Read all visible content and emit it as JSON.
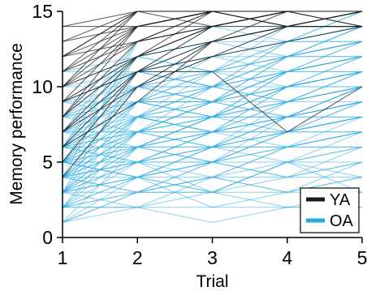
{
  "chart_data": {
    "type": "line",
    "title": "",
    "xlabel": "Trial",
    "ylabel": "Memory performance",
    "x": [
      1,
      2,
      3,
      4,
      5
    ],
    "xlim": [
      1,
      5
    ],
    "ylim": [
      0,
      15
    ],
    "xticks": [
      "1",
      "2",
      "3",
      "4",
      "5"
    ],
    "yticks": [
      "0",
      "5",
      "10",
      "15"
    ],
    "grid": false,
    "legend_position": "bottom-right",
    "series": [
      {
        "name": "YA",
        "color": "#1a1a1a",
        "lines": [
          [
            12,
            15,
            15,
            15,
            15
          ],
          [
            13,
            15,
            15,
            15,
            15
          ],
          [
            14,
            15,
            15,
            15,
            15
          ],
          [
            11,
            14,
            15,
            15,
            15
          ],
          [
            10,
            14,
            15,
            15,
            15
          ],
          [
            9,
            14,
            15,
            15,
            15
          ],
          [
            12,
            14,
            15,
            14,
            15
          ],
          [
            11,
            13,
            15,
            15,
            15
          ],
          [
            10,
            13,
            14,
            15,
            15
          ],
          [
            8,
            12,
            14,
            15,
            15
          ],
          [
            7,
            12,
            14,
            14,
            15
          ],
          [
            9,
            12,
            13,
            14,
            15
          ],
          [
            6,
            11,
            13,
            14,
            14
          ],
          [
            5,
            11,
            12,
            14,
            14
          ],
          [
            7,
            10,
            12,
            13,
            14
          ],
          [
            8,
            13,
            15,
            14,
            14
          ],
          [
            12,
            15,
            14,
            15,
            15
          ],
          [
            13,
            14,
            15,
            15,
            15
          ],
          [
            10,
            12,
            15,
            15,
            15
          ],
          [
            6,
            9,
            13,
            15,
            15
          ],
          [
            11,
            15,
            15,
            14,
            15
          ],
          [
            9,
            11,
            14,
            15,
            14
          ],
          [
            4,
            10,
            13,
            14,
            15
          ],
          [
            8,
            14,
            14,
            15,
            15
          ],
          [
            14,
            14,
            15,
            15,
            15
          ],
          [
            7,
            11,
            11,
            7,
            10
          ],
          [
            10,
            15,
            15,
            15,
            14
          ],
          [
            12,
            13,
            14,
            15,
            15
          ]
        ]
      },
      {
        "name": "OA",
        "color": "#29abe2",
        "lines": [
          [
            1,
            3,
            3,
            5,
            6
          ],
          [
            2,
            3,
            4,
            5,
            6
          ],
          [
            3,
            4,
            5,
            6,
            7
          ],
          [
            4,
            5,
            6,
            7,
            8
          ],
          [
            5,
            6,
            7,
            8,
            9
          ],
          [
            6,
            7,
            8,
            9,
            10
          ],
          [
            7,
            8,
            9,
            10,
            11
          ],
          [
            8,
            9,
            10,
            11,
            12
          ],
          [
            4,
            6,
            7,
            8,
            8
          ],
          [
            5,
            7,
            8,
            9,
            9
          ],
          [
            3,
            5,
            6,
            7,
            7
          ],
          [
            6,
            8,
            9,
            10,
            10
          ],
          [
            7,
            9,
            10,
            11,
            11
          ],
          [
            8,
            10,
            11,
            12,
            12
          ],
          [
            9,
            11,
            12,
            13,
            13
          ],
          [
            4,
            7,
            9,
            10,
            11
          ],
          [
            5,
            8,
            10,
            11,
            12
          ],
          [
            6,
            9,
            11,
            12,
            13
          ],
          [
            3,
            6,
            8,
            9,
            10
          ],
          [
            2,
            5,
            7,
            8,
            9
          ],
          [
            5,
            5,
            6,
            6,
            7
          ],
          [
            4,
            4,
            5,
            6,
            6
          ],
          [
            6,
            6,
            7,
            7,
            8
          ],
          [
            7,
            7,
            8,
            8,
            9
          ],
          [
            3,
            3,
            4,
            4,
            5
          ],
          [
            2,
            2,
            3,
            3,
            4
          ],
          [
            1,
            2,
            1,
            2,
            3
          ],
          [
            2,
            4,
            3,
            5,
            4
          ],
          [
            3,
            2,
            4,
            3,
            5
          ],
          [
            4,
            3,
            5,
            4,
            6
          ],
          [
            5,
            4,
            6,
            5,
            7
          ],
          [
            6,
            5,
            7,
            6,
            8
          ],
          [
            7,
            6,
            8,
            7,
            9
          ],
          [
            8,
            7,
            9,
            8,
            10
          ],
          [
            9,
            8,
            10,
            9,
            11
          ],
          [
            4,
            8,
            8,
            10,
            12
          ],
          [
            5,
            9,
            9,
            11,
            13
          ],
          [
            6,
            10,
            10,
            12,
            14
          ],
          [
            3,
            7,
            7,
            9,
            11
          ],
          [
            2,
            6,
            6,
            8,
            10
          ],
          [
            4,
            9,
            11,
            13,
            14
          ],
          [
            5,
            10,
            12,
            13,
            15
          ],
          [
            6,
            11,
            12,
            14,
            15
          ],
          [
            7,
            11,
            13,
            14,
            15
          ],
          [
            8,
            12,
            13,
            14,
            14
          ],
          [
            9,
            12,
            14,
            15,
            15
          ],
          [
            10,
            12,
            13,
            14,
            15
          ],
          [
            3,
            8,
            10,
            12,
            13
          ],
          [
            2,
            7,
            9,
            11,
            12
          ],
          [
            1,
            6,
            8,
            10,
            11
          ],
          [
            5,
            7,
            6,
            8,
            9
          ],
          [
            6,
            8,
            7,
            9,
            10
          ],
          [
            4,
            6,
            5,
            7,
            8
          ],
          [
            3,
            5,
            4,
            6,
            7
          ],
          [
            7,
            9,
            8,
            10,
            11
          ],
          [
            8,
            10,
            9,
            11,
            12
          ],
          [
            9,
            11,
            10,
            12,
            13
          ],
          [
            10,
            11,
            12,
            12,
            13
          ],
          [
            11,
            12,
            13,
            13,
            14
          ],
          [
            4,
            10,
            9,
            12,
            12
          ],
          [
            5,
            11,
            10,
            13,
            13
          ],
          [
            6,
            12,
            11,
            14,
            14
          ],
          [
            7,
            12,
            11,
            13,
            14
          ],
          [
            3,
            9,
            8,
            11,
            11
          ],
          [
            2,
            8,
            7,
            10,
            10
          ],
          [
            1,
            4,
            5,
            7,
            8
          ],
          [
            2,
            4,
            6,
            7,
            9
          ],
          [
            3,
            6,
            5,
            8,
            10
          ],
          [
            4,
            7,
            6,
            9,
            11
          ],
          [
            5,
            8,
            7,
            10,
            12
          ],
          [
            6,
            9,
            8,
            11,
            13
          ],
          [
            7,
            10,
            9,
            12,
            14
          ],
          [
            8,
            11,
            10,
            13,
            15
          ],
          [
            9,
            10,
            11,
            12,
            14
          ],
          [
            4,
            5,
            7,
            8,
            10
          ],
          [
            5,
            6,
            8,
            10,
            11
          ],
          [
            6,
            7,
            9,
            11,
            12
          ],
          [
            3,
            4,
            6,
            8,
            9
          ],
          [
            2,
            3,
            5,
            7,
            8
          ],
          [
            1,
            3,
            4,
            6,
            7
          ],
          [
            4,
            3,
            3,
            2,
            2
          ],
          [
            3,
            4,
            2,
            3,
            3
          ],
          [
            5,
            4,
            4,
            3,
            4
          ],
          [
            6,
            5,
            5,
            4,
            5
          ],
          [
            2,
            2,
            2,
            2,
            2
          ],
          [
            4,
            13,
            14,
            14,
            14
          ],
          [
            5,
            12,
            14,
            15,
            15
          ],
          [
            6,
            13,
            15,
            14,
            15
          ],
          [
            3,
            11,
            13,
            14,
            14
          ],
          [
            7,
            13,
            14,
            15,
            15
          ],
          [
            5,
            9,
            12,
            11,
            12
          ],
          [
            6,
            10,
            13,
            12,
            13
          ],
          [
            7,
            11,
            14,
            13,
            14
          ],
          [
            4,
            8,
            11,
            10,
            11
          ],
          [
            3,
            7,
            10,
            9,
            10
          ],
          [
            8,
            9,
            9,
            8,
            9
          ],
          [
            9,
            9,
            9,
            9,
            10
          ],
          [
            10,
            10,
            10,
            10,
            11
          ],
          [
            11,
            11,
            11,
            11,
            12
          ],
          [
            5,
            5,
            5,
            5,
            5
          ],
          [
            6,
            6,
            6,
            6,
            6
          ],
          [
            7,
            7,
            7,
            7,
            7
          ],
          [
            8,
            8,
            8,
            8,
            8
          ],
          [
            4,
            5,
            3,
            4,
            4
          ],
          [
            5,
            4,
            3,
            5,
            3
          ]
        ]
      }
    ]
  }
}
